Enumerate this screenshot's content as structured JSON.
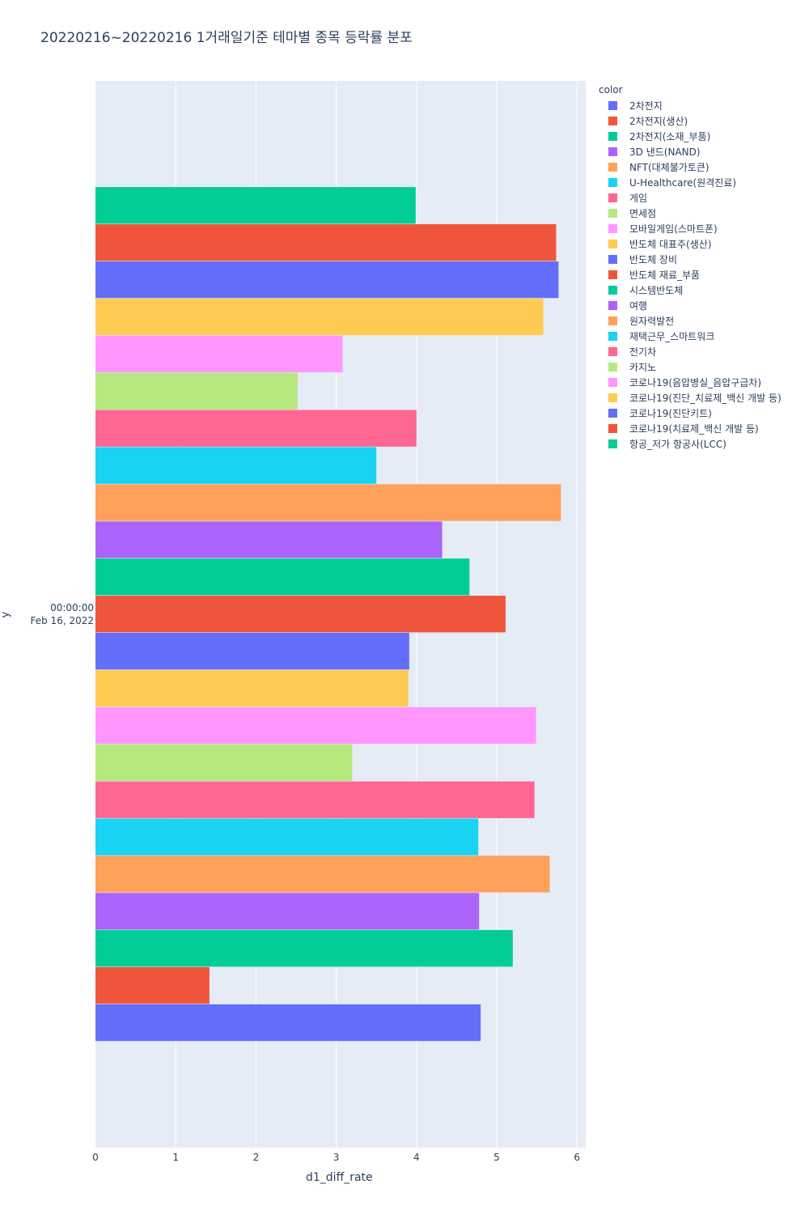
{
  "chart_data": {
    "type": "bar",
    "orientation": "horizontal",
    "barmode": "group",
    "title": "20220216~20220216 1거래일기준 테마별 종목 등락률 분포",
    "xlabel": "d1_diff_rate",
    "ylabel": "y",
    "legend_title": "color",
    "legend_position": "right",
    "xlim": [
      0,
      6.1
    ],
    "x_ticks": [
      0,
      1,
      2,
      3,
      4,
      5,
      6
    ],
    "y_ticks": [
      "00:00:00",
      "Feb 16, 2022"
    ],
    "grid": true,
    "series": [
      {
        "name": "2차전지",
        "color": "#636efa",
        "values": [
          4.8
        ]
      },
      {
        "name": "2차전지(생산)",
        "color": "#EF553B",
        "values": [
          1.42
        ]
      },
      {
        "name": "2차전지(소재_부품)",
        "color": "#00cc96",
        "values": [
          5.2
        ]
      },
      {
        "name": "3D 낸드(NAND)",
        "color": "#ab63fa",
        "values": [
          4.78
        ]
      },
      {
        "name": "NFT(대체불가토큰)",
        "color": "#FFA15A",
        "values": [
          5.66
        ]
      },
      {
        "name": "U-Healthcare(원격진료)",
        "color": "#19d3f3",
        "values": [
          4.77
        ]
      },
      {
        "name": "게임",
        "color": "#FF6692",
        "values": [
          5.47
        ]
      },
      {
        "name": "면세점",
        "color": "#B6E880",
        "values": [
          3.2
        ]
      },
      {
        "name": "모바일게임(스마트폰)",
        "color": "#FF97FF",
        "values": [
          5.49
        ]
      },
      {
        "name": "반도체 대표주(생산)",
        "color": "#FECB52",
        "values": [
          3.9
        ]
      },
      {
        "name": "반도체 장비",
        "color": "#636efa",
        "values": [
          3.91
        ]
      },
      {
        "name": "반도체 재료_부품",
        "color": "#EF553B",
        "values": [
          5.11
        ]
      },
      {
        "name": "시스템반도체",
        "color": "#00cc96",
        "values": [
          4.66
        ]
      },
      {
        "name": "여행",
        "color": "#ab63fa",
        "values": [
          4.32
        ]
      },
      {
        "name": "원자력발전",
        "color": "#FFA15A",
        "values": [
          5.8
        ]
      },
      {
        "name": "재택근무_스마트워크",
        "color": "#19d3f3",
        "values": [
          3.5
        ]
      },
      {
        "name": "전기차",
        "color": "#FF6692",
        "values": [
          4.0
        ]
      },
      {
        "name": "카지노",
        "color": "#B6E880",
        "values": [
          2.52
        ]
      },
      {
        "name": "코로나19(음압병실_음압구급차)",
        "color": "#FF97FF",
        "values": [
          3.08
        ]
      },
      {
        "name": "코로나19(진단_치료제_백신 개발 등)",
        "color": "#FECB52",
        "values": [
          5.58
        ]
      },
      {
        "name": "코로나19(진단키트)",
        "color": "#636efa",
        "values": [
          5.77
        ]
      },
      {
        "name": "코로나19(치료제_백신 개발 등)",
        "color": "#EF553B",
        "values": [
          5.74
        ]
      },
      {
        "name": "항공_저가 항공사(LCC)",
        "color": "#00cc96",
        "values": [
          3.99
        ]
      }
    ]
  }
}
